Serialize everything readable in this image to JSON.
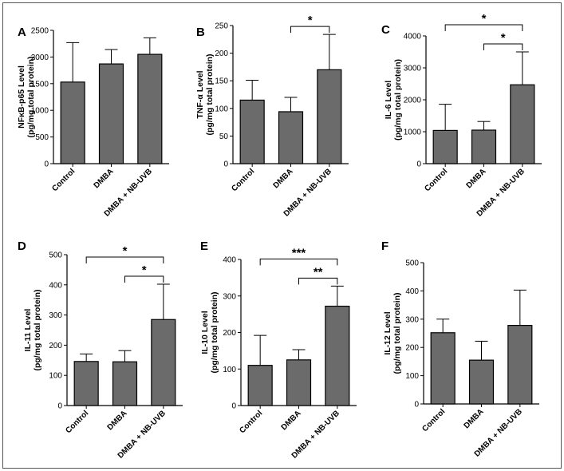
{
  "chart_data": [
    {
      "panel": "A",
      "type": "bar",
      "categories": [
        "Control",
        "DMBA",
        "DMBA + NB-UVB"
      ],
      "values": [
        1530,
        1870,
        2050
      ],
      "errors": [
        740,
        270,
        310
      ],
      "ylabel_lines": [
        "NFκB-p65 Level",
        "(pg/mg total protein)"
      ],
      "ylim": [
        0,
        2500
      ],
      "yticks": [
        0,
        500,
        1000,
        1500,
        2000,
        2500
      ],
      "significance": [],
      "bar_color": "#6b6b6b"
    },
    {
      "panel": "B",
      "type": "bar",
      "categories": [
        "Control",
        "DMBA",
        "DMBA + NB-UVB"
      ],
      "values": [
        115,
        94,
        170
      ],
      "errors": [
        36,
        26,
        64
      ],
      "ylabel_lines": [
        "TNF-α Level",
        "(pg/mg total protein)"
      ],
      "ylim": [
        0,
        250
      ],
      "yticks": [
        0,
        50,
        100,
        150,
        200,
        250
      ],
      "significance": [
        {
          "from": 1,
          "to": 2,
          "label": "*"
        }
      ],
      "bar_color": "#6b6b6b"
    },
    {
      "panel": "C",
      "type": "bar",
      "categories": [
        "Control",
        "DMBA",
        "DMBA + NB-UVB"
      ],
      "values": [
        1040,
        1050,
        2470
      ],
      "errors": [
        820,
        270,
        1030
      ],
      "ylabel_lines": [
        "IL-6 Level",
        "(pg/mg total protein)"
      ],
      "ylim": [
        0,
        4000
      ],
      "yticks": [
        0,
        1000,
        2000,
        3000,
        4000
      ],
      "significance": [
        {
          "from": 1,
          "to": 2,
          "label": "*"
        },
        {
          "from": 0,
          "to": 2,
          "label": "*"
        }
      ],
      "bar_color": "#6b6b6b"
    },
    {
      "panel": "D",
      "type": "bar",
      "categories": [
        "Control",
        "DMBA",
        "DMBA + NB-UVB"
      ],
      "values": [
        146,
        145,
        285
      ],
      "errors": [
        25,
        37,
        117
      ],
      "ylabel_lines": [
        "IL-11 Level",
        "(pg/mg total protein)"
      ],
      "ylim": [
        0,
        500
      ],
      "yticks": [
        0,
        100,
        200,
        300,
        400,
        500
      ],
      "significance": [
        {
          "from": 1,
          "to": 2,
          "label": "*"
        },
        {
          "from": 0,
          "to": 2,
          "label": "*"
        }
      ],
      "bar_color": "#6b6b6b"
    },
    {
      "panel": "E",
      "type": "bar",
      "categories": [
        "Control",
        "DMBA",
        "DMBA + NB-UVB"
      ],
      "values": [
        110,
        125,
        272
      ],
      "errors": [
        82,
        28,
        55
      ],
      "ylabel_lines": [
        "IL-10 Level",
        "(pg/mg total protein)"
      ],
      "ylim": [
        0,
        400
      ],
      "yticks": [
        0,
        100,
        200,
        300,
        400
      ],
      "significance": [
        {
          "from": 1,
          "to": 2,
          "label": "**"
        },
        {
          "from": 0,
          "to": 2,
          "label": "***"
        }
      ],
      "bar_color": "#6b6b6b"
    },
    {
      "panel": "F",
      "type": "bar",
      "categories": [
        "Control",
        "DMBA",
        "DMBA + NB-UVB"
      ],
      "values": [
        252,
        155,
        278
      ],
      "errors": [
        48,
        67,
        125
      ],
      "ylabel_lines": [
        "IL-12 Level",
        "(pg/mg total protein)"
      ],
      "ylim": [
        0,
        500
      ],
      "yticks": [
        0,
        100,
        200,
        300,
        400,
        500
      ],
      "significance": [],
      "bar_color": "#6b6b6b"
    }
  ]
}
